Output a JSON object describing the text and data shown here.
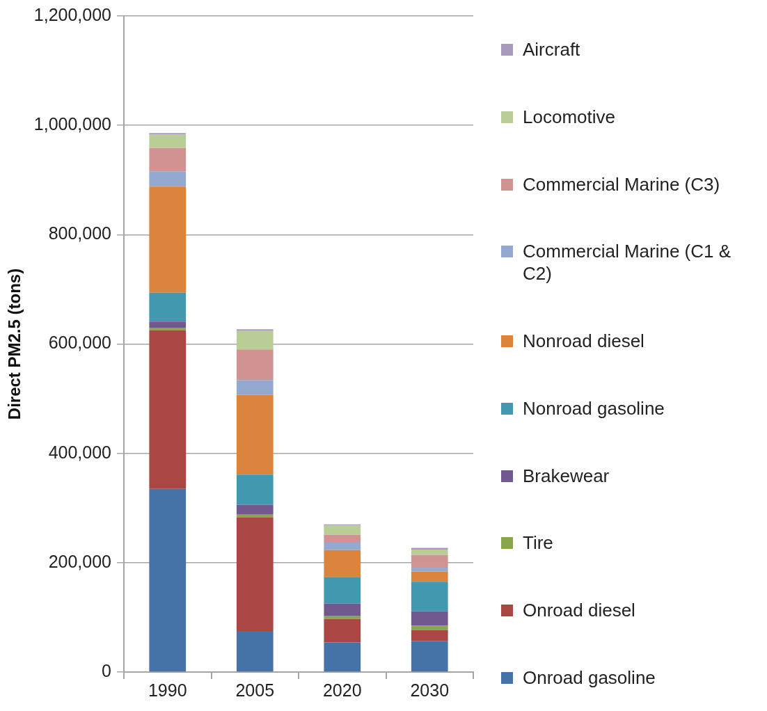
{
  "chart_data": {
    "type": "bar",
    "stacked": true,
    "ylabel": "Direct PM2.5 (tons)",
    "categories": [
      "1990",
      "2005",
      "2020",
      "2030"
    ],
    "ylim": [
      0,
      1200000
    ],
    "yticks": [
      {
        "value": 0,
        "label": "0"
      },
      {
        "value": 200000,
        "label": "200,000"
      },
      {
        "value": 400000,
        "label": "400,000"
      },
      {
        "value": 600000,
        "label": "600,000"
      },
      {
        "value": 800000,
        "label": "800,000"
      },
      {
        "value": 1000000,
        "label": "1,000,000"
      },
      {
        "value": 1200000,
        "label": "1,200,000"
      }
    ],
    "grid": "y",
    "legend": "right",
    "series": [
      {
        "name": "Onroad gasoline",
        "color": "#4572a7",
        "values": [
          335000,
          75000,
          54000,
          57000
        ]
      },
      {
        "name": "Onroad diesel",
        "color": "#aa4643",
        "values": [
          290000,
          208000,
          43000,
          20000
        ]
      },
      {
        "name": "Tire",
        "color": "#89a54e",
        "values": [
          5000,
          5000,
          6000,
          8000
        ]
      },
      {
        "name": "Brakewear",
        "color": "#71588f",
        "values": [
          11000,
          18000,
          22000,
          26000
        ]
      },
      {
        "name": "Nonroad gasoline",
        "color": "#4198af",
        "values": [
          53000,
          55000,
          49000,
          54000
        ]
      },
      {
        "name": "Nonroad diesel",
        "color": "#db843d",
        "values": [
          194000,
          146000,
          49000,
          19000
        ]
      },
      {
        "name": "Commercial Marine (C1 & C2)",
        "color": "#93a9cf",
        "values": [
          28000,
          27000,
          15000,
          8000
        ]
      },
      {
        "name": "Commercial Marine (C3)",
        "color": "#d19392",
        "values": [
          43000,
          56000,
          13000,
          22000
        ]
      },
      {
        "name": "Locomotive",
        "color": "#b9cd96",
        "values": [
          24000,
          34000,
          17000,
          10000
        ]
      },
      {
        "name": "Aircraft",
        "color": "#a99bbd",
        "values": [
          3000,
          3000,
          2000,
          3000
        ]
      }
    ]
  }
}
